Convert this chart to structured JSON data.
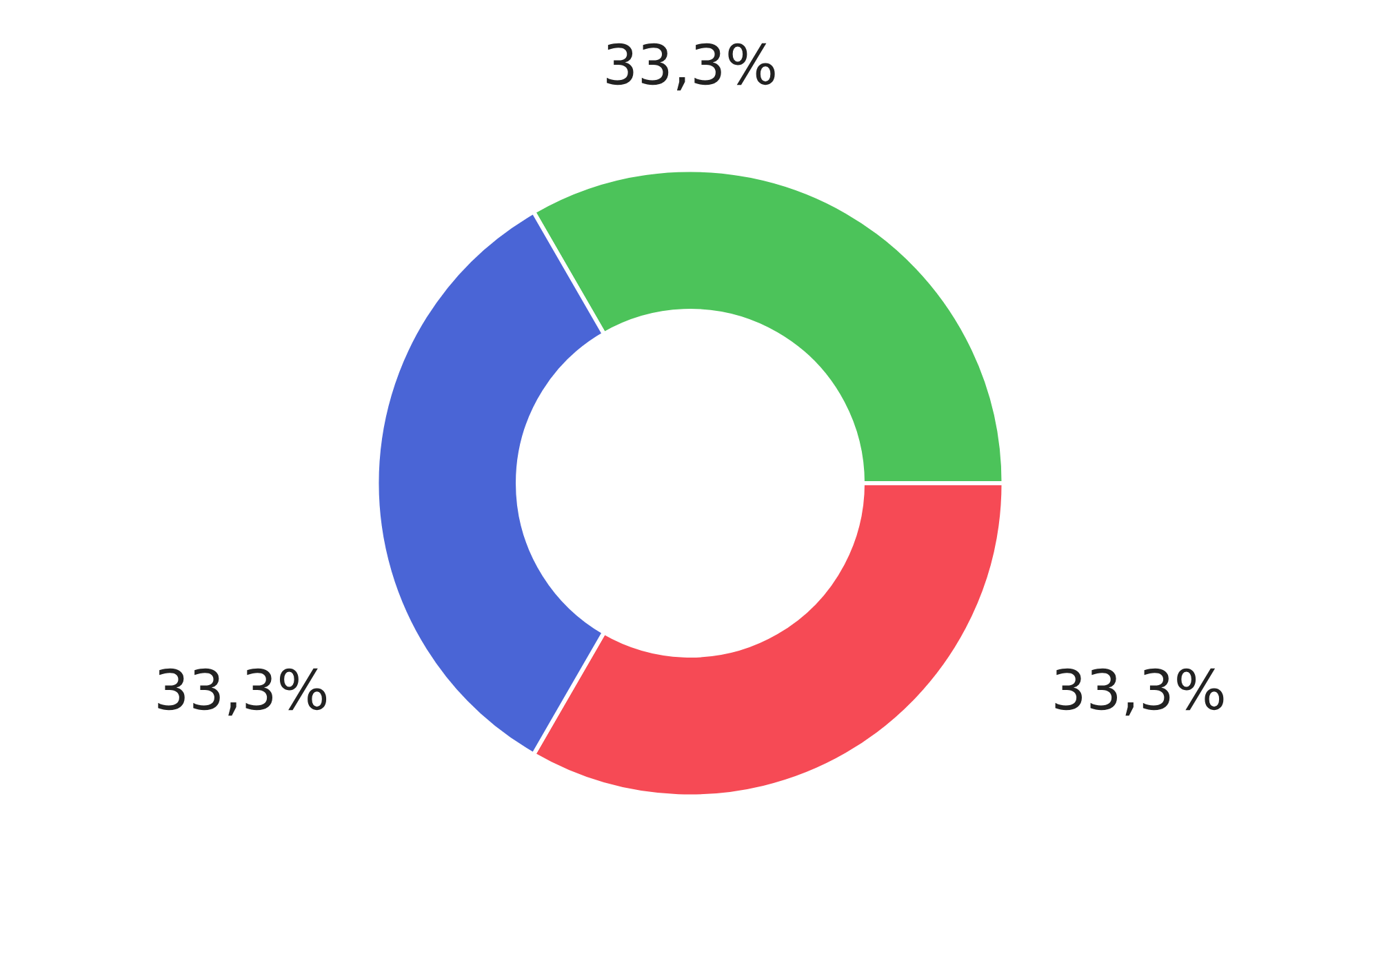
{
  "chart_data": {
    "type": "donut",
    "categories": [
      null,
      null,
      null
    ],
    "values": [
      33.3,
      33.3,
      33.3
    ],
    "colors": [
      "#4cc35a",
      "#f64a55",
      "#4a65d6"
    ],
    "value_labels": [
      "33,3%",
      "33,3%",
      "33,3%"
    ]
  }
}
